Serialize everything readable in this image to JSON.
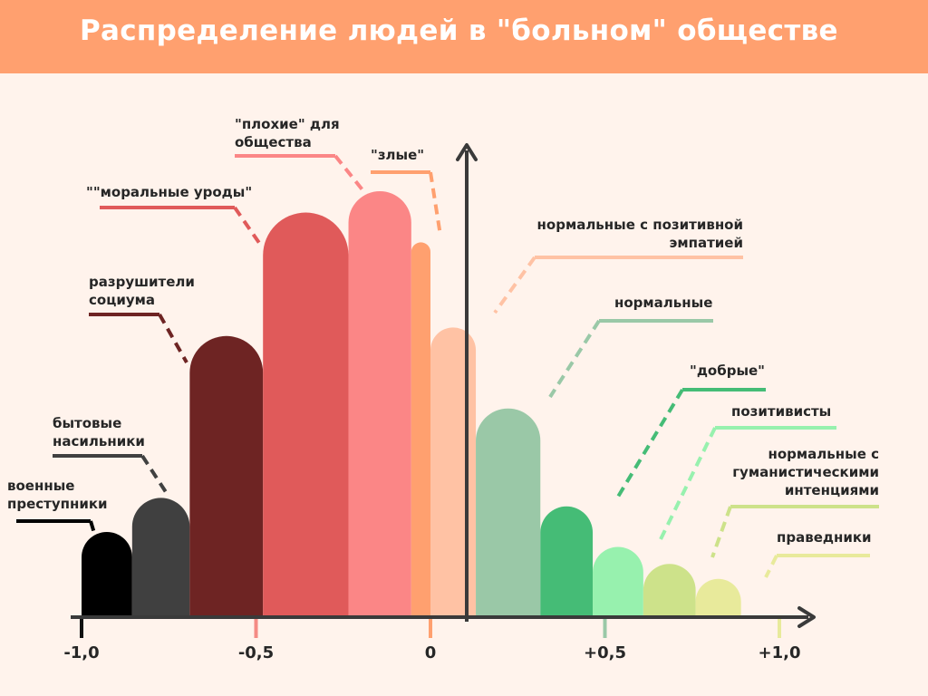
{
  "title": "Распределение людей в \"больном\" обществе",
  "chart_data": {
    "type": "bar",
    "title": "Распределение людей в \"больном\" обществе",
    "xlabel": "",
    "ylabel": "",
    "xlim": [
      -1.0,
      1.0
    ],
    "x_ticks": [
      {
        "value": -1.0,
        "label": "-1,0",
        "color": "#111111"
      },
      {
        "value": -0.5,
        "label": "-0,5",
        "color": "#f48a84"
      },
      {
        "value": 0,
        "label": "0",
        "color": "#ffa06f"
      },
      {
        "value": 0.5,
        "label": "+0,5",
        "color": "#9ac8a7"
      },
      {
        "value": 1.0,
        "label": "+1,0",
        "color": "#e8ea9b"
      }
    ],
    "bars": [
      {
        "label": [
          "военные",
          "преступники"
        ],
        "x_start": -1.0,
        "x_end": -0.855,
        "value": 0.2,
        "color": "#000000",
        "label_color": "#000000"
      },
      {
        "label": [
          "бытовые",
          "насильники"
        ],
        "x_start": -0.855,
        "x_end": -0.69,
        "value": 0.28,
        "color": "#404040",
        "label_color": "#404040"
      },
      {
        "label": [
          "разрушители",
          "социума"
        ],
        "x_start": -0.69,
        "x_end": -0.48,
        "value": 0.66,
        "color": "#6e2423",
        "label_color": "#6e2423"
      },
      {
        "label": [
          "\"\"моральные уроды\""
        ],
        "x_start": -0.48,
        "x_end": -0.235,
        "value": 0.95,
        "color": "#e05a5a",
        "label_color": "#e05a5a"
      },
      {
        "label": [
          "\"плохие\" для",
          "общества"
        ],
        "x_start": -0.235,
        "x_end": -0.055,
        "value": 1.0,
        "color": "#fb8686",
        "label_color": "#fb8686"
      },
      {
        "label": [
          "\"злые\""
        ],
        "x_start": -0.055,
        "x_end": 0.0,
        "value": 0.88,
        "color": "#ffa06f",
        "label_color": "#ffa06f"
      },
      {
        "label": [
          "нормальные с позитивной",
          "эмпатией"
        ],
        "x_start": 0.0,
        "x_end": 0.13,
        "value": 0.68,
        "color": "#ffc2a4",
        "label_color": "#ffc2a4"
      },
      {
        "label": [
          "нормальные"
        ],
        "x_start": 0.13,
        "x_end": 0.315,
        "value": 0.49,
        "color": "#9ac8a7",
        "label_color": "#9ac8a7"
      },
      {
        "label": [
          "\"добрые\""
        ],
        "x_start": 0.315,
        "x_end": 0.465,
        "value": 0.26,
        "color": "#45bc76",
        "label_color": "#45bc76"
      },
      {
        "label": [
          "позитивисты"
        ],
        "x_start": 0.465,
        "x_end": 0.61,
        "value": 0.165,
        "color": "#97f1ae",
        "label_color": "#97f1ae"
      },
      {
        "label": [
          "нормальные с",
          "гуманистическими",
          "интенциями"
        ],
        "x_start": 0.61,
        "x_end": 0.76,
        "value": 0.125,
        "color": "#cde28a",
        "label_color": "#cde28a"
      },
      {
        "label": [
          "праведники"
        ],
        "x_start": 0.76,
        "x_end": 0.89,
        "value": 0.09,
        "color": "#e8ea9b",
        "label_color": "#e8ea9b"
      }
    ]
  }
}
